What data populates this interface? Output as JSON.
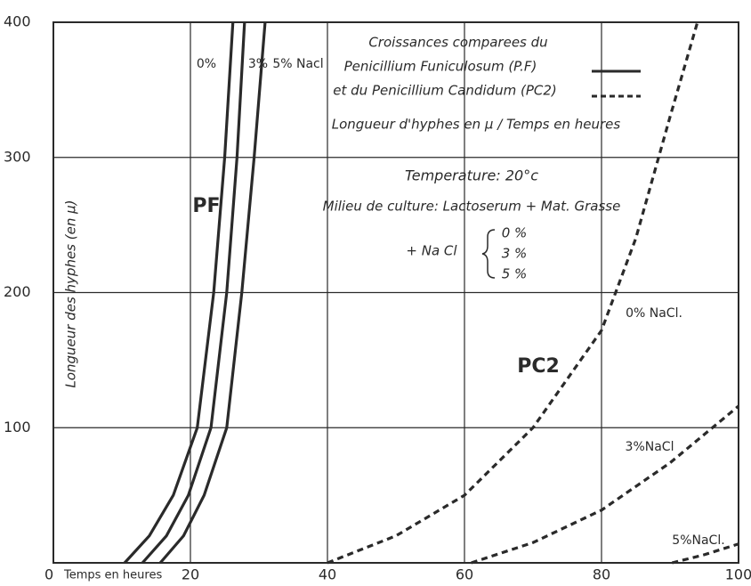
{
  "chart_data": {
    "type": "line",
    "x_label": "Temps en heures",
    "y_label": "Longueur des hyphes (en µ)",
    "xlim": [
      0,
      100
    ],
    "ylim": [
      0,
      400
    ],
    "xticks": [
      0,
      20,
      40,
      60,
      80,
      100
    ],
    "yticks": [
      100,
      200,
      300,
      400
    ],
    "grid": true,
    "series": [
      {
        "name": "0%",
        "color": "#2a2a2a",
        "dash": false,
        "x": [
          10.4,
          14,
          17.5,
          21,
          23.4,
          25,
          26.2
        ],
        "values": [
          0,
          20,
          50,
          100,
          200,
          300,
          400
        ]
      },
      {
        "name": "3%",
        "color": "#2a2a2a",
        "dash": false,
        "x": [
          13,
          16.5,
          19.7,
          23,
          25.3,
          26.8,
          27.9
        ],
        "values": [
          0,
          20,
          50,
          100,
          200,
          300,
          400
        ]
      },
      {
        "name": "5% Nacl",
        "color": "#2a2a2a",
        "dash": false,
        "x": [
          15.6,
          19,
          22,
          25.3,
          27.5,
          29.3,
          30.9
        ],
        "values": [
          0,
          20,
          50,
          100,
          200,
          300,
          400
        ]
      },
      {
        "name": "0% NaCl.",
        "color": "#2a2a2a",
        "dash": true,
        "x": [
          40,
          50,
          60,
          70,
          80,
          85,
          90,
          94
        ],
        "values": [
          0,
          20,
          50,
          100,
          172,
          240,
          330,
          400
        ]
      },
      {
        "name": "3%NaCl",
        "color": "#2a2a2a",
        "dash": true,
        "x": [
          61,
          70,
          80,
          90,
          100
        ],
        "values": [
          0,
          15,
          39,
          74,
          116
        ]
      },
      {
        "name": "5%NaCl.",
        "color": "#2a2a2a",
        "dash": true,
        "x": [
          90.3,
          95,
          100
        ],
        "values": [
          0,
          6,
          14
        ]
      }
    ],
    "annotations": [
      "Croissances comparees du",
      "Penicillium Funiculosum (P.F)",
      "et du Penicillium Candidum (PC2)",
      "Longueur d'hyphes en µ / Temps en heures",
      "Temperature: 20°c",
      "Milieu de culture: Lactoserum + Mat. Grasse",
      "+ Na Cl",
      "0 %",
      "3 %",
      "5 %",
      "PF",
      "PC2"
    ]
  }
}
